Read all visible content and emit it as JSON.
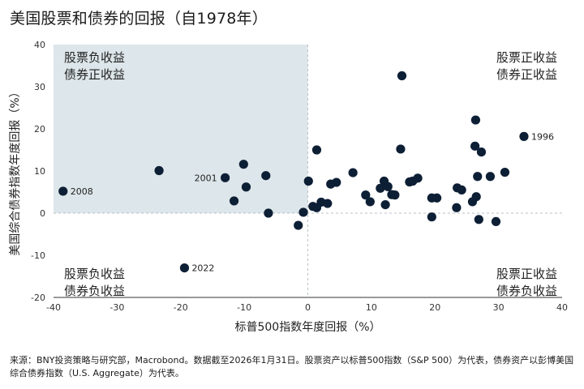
{
  "title": "美国股票和债券的回报（自1978年）",
  "source": "来源：BNY投资策略与研究部，Macrobond。数据截至2026年1月31日。股票资产以标普500指数（S&P 500）为代表，债券资产以彭博美国综合债券指数（U.S. Aggregate）为代表。",
  "colors": {
    "point": "#0d1f35",
    "shade": "#dde6ea",
    "zero_line": "#b8c1c7",
    "axis": "#333333"
  },
  "chart_data": {
    "type": "scatter",
    "title": "美国股票和债券的回报（自1978年）",
    "xlabel": "标普500指数年度回报（%）",
    "ylabel": "美国综合债券指数年度回报（%）",
    "xlim": [
      -40,
      40
    ],
    "ylim": [
      -20,
      40
    ],
    "xticks": [
      "-40",
      "-30",
      "-20",
      "-10",
      "0",
      "10",
      "20",
      "30",
      "40"
    ],
    "yticks": [
      "40",
      "30",
      "20",
      "10",
      "0",
      "-10",
      "-20"
    ],
    "grid": false,
    "shaded_region": {
      "x": [
        -40,
        0
      ],
      "y": [
        0,
        40
      ]
    },
    "quadrant_labels": {
      "top_left": [
        "股票负收益",
        "债券正收益"
      ],
      "top_right": [
        "股票正收益",
        "债券正收益"
      ],
      "bottom_left": [
        "股票负收益",
        "债券负收益"
      ],
      "bottom_right": [
        "股票正收益",
        "债券负收益"
      ]
    },
    "labeled_points": [
      {
        "label": "2008",
        "x": -38.5,
        "y": 5.2
      },
      {
        "label": "2001",
        "x": -13.0,
        "y": 8.4
      },
      {
        "label": "2022",
        "x": -19.4,
        "y": -13.0
      },
      {
        "label": "1996",
        "x": 34.0,
        "y": 18.2
      }
    ],
    "points": [
      {
        "x": -38.5,
        "y": 5.2
      },
      {
        "x": -23.4,
        "y": 10.1
      },
      {
        "x": -19.4,
        "y": -13.0
      },
      {
        "x": -13.0,
        "y": 8.4
      },
      {
        "x": -11.6,
        "y": 2.9
      },
      {
        "x": -10.1,
        "y": 11.6
      },
      {
        "x": -9.7,
        "y": 6.2
      },
      {
        "x": -6.6,
        "y": 8.9
      },
      {
        "x": -6.2,
        "y": 0.0
      },
      {
        "x": -1.5,
        "y": -2.9
      },
      {
        "x": -0.7,
        "y": 0.2
      },
      {
        "x": 0.1,
        "y": 7.6
      },
      {
        "x": 0.8,
        "y": 1.6
      },
      {
        "x": 1.4,
        "y": 1.3
      },
      {
        "x": 1.4,
        "y": 15.0
      },
      {
        "x": 2.1,
        "y": 2.6
      },
      {
        "x": 3.1,
        "y": 2.3
      },
      {
        "x": 3.6,
        "y": 6.9
      },
      {
        "x": 4.5,
        "y": 7.3
      },
      {
        "x": 7.1,
        "y": 9.6
      },
      {
        "x": 9.1,
        "y": 4.3
      },
      {
        "x": 9.8,
        "y": 2.7
      },
      {
        "x": 11.4,
        "y": 5.9
      },
      {
        "x": 12.0,
        "y": 7.6
      },
      {
        "x": 12.2,
        "y": 2.0
      },
      {
        "x": 12.6,
        "y": 6.3
      },
      {
        "x": 13.2,
        "y": 4.4
      },
      {
        "x": 13.7,
        "y": 4.3
      },
      {
        "x": 14.6,
        "y": 15.2
      },
      {
        "x": 14.8,
        "y": 32.6
      },
      {
        "x": 16.0,
        "y": 7.4
      },
      {
        "x": 16.5,
        "y": 7.6
      },
      {
        "x": 17.3,
        "y": 8.3
      },
      {
        "x": 19.5,
        "y": 3.6
      },
      {
        "x": 19.5,
        "y": -0.9
      },
      {
        "x": 20.3,
        "y": 3.6
      },
      {
        "x": 23.4,
        "y": 1.3
      },
      {
        "x": 23.5,
        "y": 6.0
      },
      {
        "x": 24.2,
        "y": 5.5
      },
      {
        "x": 25.9,
        "y": 2.7
      },
      {
        "x": 26.3,
        "y": 15.9
      },
      {
        "x": 26.4,
        "y": 22.1
      },
      {
        "x": 26.5,
        "y": 3.9
      },
      {
        "x": 26.7,
        "y": 8.7
      },
      {
        "x": 26.9,
        "y": -1.5
      },
      {
        "x": 27.3,
        "y": 14.5
      },
      {
        "x": 28.7,
        "y": 8.7
      },
      {
        "x": 29.6,
        "y": -2.0
      },
      {
        "x": 31.0,
        "y": 9.7
      },
      {
        "x": 34.0,
        "y": 18.2
      }
    ]
  }
}
